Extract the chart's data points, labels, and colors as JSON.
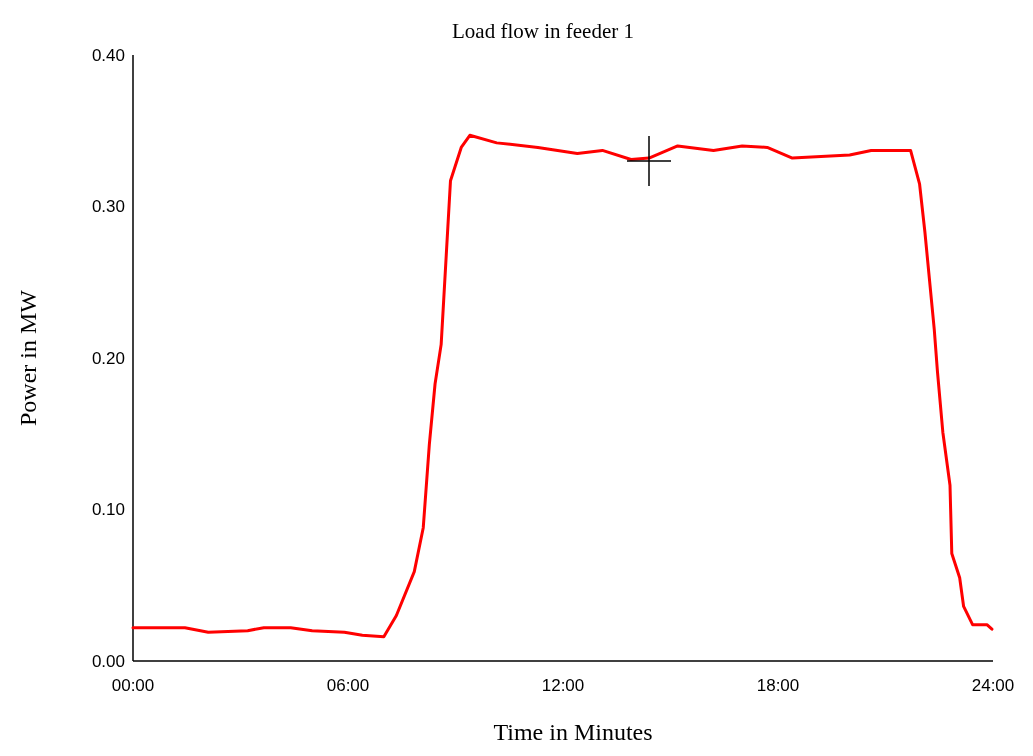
{
  "chart_data": {
    "type": "line",
    "title": "Load flow in feeder 1",
    "xlabel": "Time in Minutes",
    "ylabel": "Power in MW",
    "x": [
      0,
      1.45,
      2.1,
      3.2,
      3.65,
      4.4,
      5.0,
      5.9,
      6.4,
      7.0,
      7.35,
      7.85,
      8.1,
      8.27,
      8.43,
      8.6,
      8.67,
      8.86,
      9.16,
      9.4,
      10.15,
      11.3,
      12.4,
      13.1,
      13.9,
      14.4,
      15.2,
      16.2,
      17.0,
      17.7,
      18.4,
      20.0,
      20.6,
      21.7,
      21.95,
      22.1,
      22.36,
      22.45,
      22.6,
      22.8,
      22.85,
      23.07,
      23.18,
      23.43,
      23.83,
      23.97
    ],
    "series": [
      {
        "color": "#ff0000",
        "values": [
          0.022,
          0.022,
          0.019,
          0.02,
          0.022,
          0.022,
          0.02,
          0.019,
          0.017,
          0.016,
          0.03,
          0.059,
          0.088,
          0.143,
          0.183,
          0.209,
          0.238,
          0.317,
          0.339,
          0.347,
          0.342,
          0.339,
          0.335,
          0.337,
          0.331,
          0.332,
          0.34,
          0.337,
          0.34,
          0.339,
          0.332,
          0.334,
          0.337,
          0.337,
          0.315,
          0.283,
          0.219,
          0.191,
          0.151,
          0.116,
          0.071,
          0.055,
          0.036,
          0.024,
          0.024,
          0.021
        ]
      }
    ],
    "xlim": [
      0,
      24
    ],
    "xticks": [
      {
        "value": 0,
        "label": "00:00"
      },
      {
        "value": 6,
        "label": "06:00"
      },
      {
        "value": 12,
        "label": "12:00"
      },
      {
        "value": 18,
        "label": "18:00"
      },
      {
        "value": 24,
        "label": "24:00"
      }
    ],
    "ylim": [
      0,
      0.4
    ],
    "yticks": [
      {
        "value": 0,
        "label": "0.00"
      },
      {
        "value": 0.1,
        "label": "0.10"
      },
      {
        "value": 0.2,
        "label": "0.20"
      },
      {
        "value": 0.3,
        "label": "0.30"
      },
      {
        "value": 0.4,
        "label": "0.40"
      }
    ],
    "grid": false,
    "marker": "none",
    "line_style": "solid"
  }
}
